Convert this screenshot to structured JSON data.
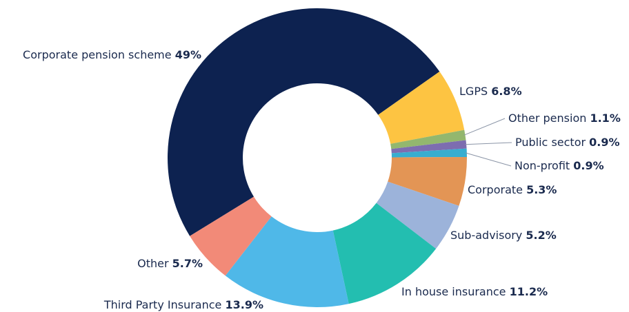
{
  "chart_data": {
    "type": "donut",
    "categories": [
      "Corporate pension scheme",
      "LGPS",
      "Other pension",
      "Public sector",
      "Non-profit",
      "Corporate",
      "Sub-advisory",
      "In house insurance",
      "Third Party Insurance",
      "Other"
    ],
    "values": [
      49,
      6.8,
      1.1,
      0.9,
      0.9,
      5.3,
      5.2,
      11.2,
      13.9,
      5.7
    ],
    "value_labels": [
      "49%",
      "6.8%",
      "1.1%",
      "0.9%",
      "0.9%",
      "5.3%",
      "5.2%",
      "11.2%",
      "13.9%",
      "5.7%"
    ],
    "colors": [
      "#0d2250",
      "#fdc442",
      "#93b76e",
      "#7d6db0",
      "#38adcf",
      "#e39555",
      "#9cb3da",
      "#23beb0",
      "#4fb8e8",
      "#f28a78"
    ]
  }
}
